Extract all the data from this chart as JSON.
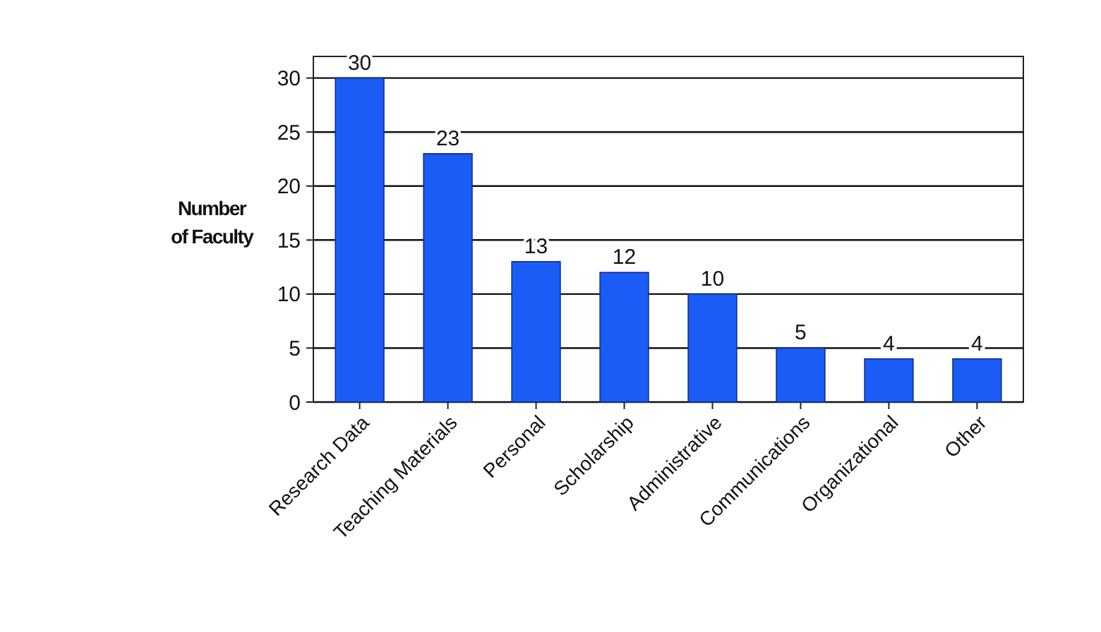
{
  "chart_data": {
    "type": "bar",
    "ylabel": "Number\nof Faculty",
    "categories": [
      "Research Data",
      "Teaching Materials",
      "Personal",
      "Scholarship",
      "Administrative",
      "Communications",
      "Organizational",
      "Other"
    ],
    "values": [
      30,
      23,
      13,
      12,
      10,
      5,
      4,
      4
    ],
    "color": "#1a5cf5",
    "ylim": [
      0,
      32
    ],
    "yticks": [
      0,
      5,
      10,
      15,
      20,
      25,
      30
    ],
    "grid": "y",
    "data_labels": true
  }
}
